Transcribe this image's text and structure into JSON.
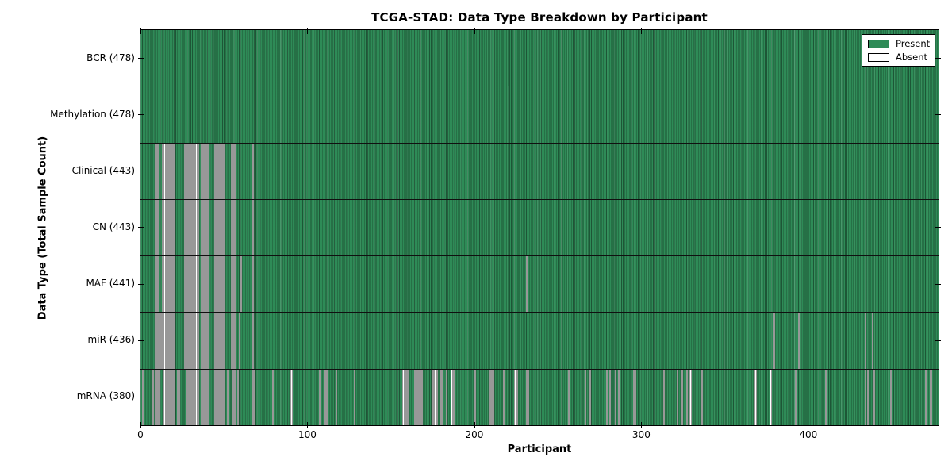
{
  "chart_data": {
    "type": "heatmap",
    "title": "TCGA-STAD: Data Type Breakdown by Participant",
    "xlabel": "Participant",
    "ylabel": "Data Type (Total Sample Count)",
    "x_range": [
      0,
      478
    ],
    "x_ticks": [
      0,
      100,
      200,
      300,
      400
    ],
    "n_participants": 478,
    "grid": false,
    "legend_position": "upper right",
    "colors": {
      "present": "#2E8B57",
      "absent": "#ffffff",
      "edge": "#000000",
      "background": "#ffffff"
    },
    "legend": [
      {
        "label": "Present",
        "color": "#2E8B57"
      },
      {
        "label": "Absent",
        "color": "#ffffff"
      }
    ],
    "rows": [
      {
        "label": "BCR (478)",
        "name": "BCR",
        "total": 478,
        "absent": []
      },
      {
        "label": "Methylation (478)",
        "name": "Methylation",
        "total": 478,
        "absent": []
      },
      {
        "label": "Clinical (443)",
        "name": "Clinical",
        "total": 443,
        "absent": [
          9,
          10,
          13,
          14,
          15,
          16,
          17,
          18,
          19,
          20,
          26,
          27,
          28,
          29,
          30,
          31,
          32,
          33,
          34,
          36,
          37,
          38,
          39,
          40,
          44,
          45,
          46,
          47,
          48,
          49,
          50,
          54,
          55,
          56,
          67
        ]
      },
      {
        "label": "CN (443)",
        "name": "CN",
        "total": 443,
        "absent": [
          9,
          10,
          13,
          14,
          15,
          16,
          17,
          18,
          19,
          20,
          26,
          27,
          28,
          29,
          30,
          31,
          32,
          33,
          34,
          36,
          37,
          38,
          39,
          40,
          44,
          45,
          46,
          47,
          48,
          49,
          50,
          54,
          55,
          56,
          67
        ]
      },
      {
        "label": "MAF (441)",
        "name": "MAF",
        "total": 441,
        "absent": [
          9,
          10,
          13,
          14,
          15,
          16,
          17,
          18,
          19,
          20,
          26,
          27,
          28,
          29,
          30,
          31,
          32,
          33,
          34,
          36,
          37,
          38,
          39,
          40,
          44,
          45,
          46,
          47,
          48,
          49,
          50,
          54,
          55,
          56,
          60,
          67,
          231
        ]
      },
      {
        "label": "miR (436)",
        "name": "miR",
        "total": 436,
        "absent": [
          9,
          10,
          11,
          12,
          13,
          14,
          15,
          16,
          17,
          18,
          19,
          20,
          26,
          27,
          28,
          29,
          30,
          31,
          32,
          33,
          34,
          36,
          37,
          38,
          39,
          40,
          44,
          45,
          46,
          47,
          48,
          49,
          50,
          54,
          55,
          56,
          59,
          67,
          379,
          394,
          434,
          438
        ]
      },
      {
        "label": "mRNA (380)",
        "name": "mRNA",
        "total": 380,
        "absent": [
          1,
          7,
          9,
          10,
          11,
          14,
          15,
          16,
          17,
          18,
          19,
          20,
          22,
          23,
          27,
          28,
          29,
          30,
          31,
          32,
          33,
          34,
          36,
          37,
          38,
          39,
          40,
          44,
          45,
          46,
          47,
          48,
          49,
          50,
          52,
          55,
          56,
          58,
          67,
          68,
          79,
          90,
          107,
          110,
          111,
          117,
          128,
          157,
          158,
          159,
          160,
          164,
          165,
          166,
          167,
          168,
          175,
          176,
          177,
          179,
          180,
          183,
          186,
          187,
          200,
          209,
          210,
          211,
          217,
          224,
          225,
          231,
          232,
          256,
          266,
          269,
          279,
          281,
          284,
          286,
          295,
          296,
          313,
          321,
          324,
          327,
          329,
          336,
          368,
          377,
          392,
          410,
          434,
          435,
          439,
          449,
          470,
          473
        ]
      }
    ]
  }
}
